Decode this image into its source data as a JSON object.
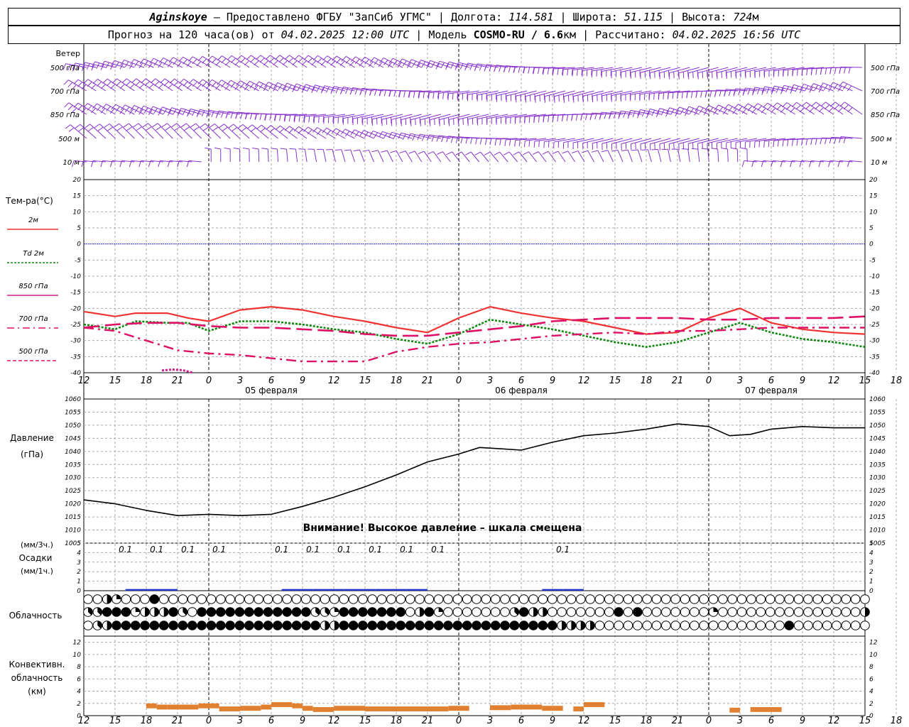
{
  "header": {
    "station": "Aginskoye",
    "provider_text": " — Предоставлено ФГБУ \"ЗапСиб УГМС\" | Долгота: ",
    "lon": "114.581",
    "lat_label": " | Широта: ",
    "lat": "51.115",
    "alt_label": " | Высота: ",
    "alt": "724",
    "alt_unit": "м",
    "fc_label": "Прогноз на 120 часа(ов) от ",
    "fc_time": "04.02.2025 12:00 UTC",
    "model_label": " | Модель ",
    "model": "COSMO-RU / 6.6",
    "model_unit": "км",
    "calc_label": " | Рассчитано: ",
    "calc_time": "04.02.2025 16:56 UTC"
  },
  "colors": {
    "wind": "#8833cc",
    "t2m": "#ee3333",
    "td2m": "#118811",
    "t850": "#cc2288",
    "t700": "#dd1166",
    "t500": "#dd1166",
    "pressure": "#000000",
    "precip": "#2233cc",
    "convective": "#e08030",
    "zero_line": "#3333cc",
    "grid": "#aaaaaa"
  },
  "labels": {
    "wind": "Ветер",
    "wind_levels": [
      "500 гПа",
      "700 гПа",
      "850 гПа",
      "500 м",
      "10 м"
    ],
    "temp": "Тем-ра(°С)",
    "temp_legend": [
      {
        "label": "2м",
        "key": "t2m",
        "dash": ""
      },
      {
        "label": "Td  2м",
        "key": "td2m",
        "dash": "3,2"
      },
      {
        "label": "850 гПа",
        "key": "t850",
        "dash": ""
      },
      {
        "label": "700 гПа",
        "key": "t700",
        "dash": "10,5,2,5"
      },
      {
        "label": "500 гПа",
        "key": "t500",
        "dash": "5,3"
      }
    ],
    "pressure": "Давление",
    "pressure_unit": "(гПа)",
    "pressure_warning": "Внимание! Высокое давление – шкала смещена",
    "precip_unit1": "(мм/3ч.)",
    "precip": "Осадки",
    "precip_unit2": "(мм/1ч.)",
    "cloud": "Облачность",
    "conv1": "Конвективн.",
    "conv2": "облачность",
    "conv3": "(км)"
  },
  "chart_data": {
    "type": "line",
    "hour_ticks": [
      "12",
      "15",
      "18",
      "21",
      "0",
      "3",
      "6",
      "9",
      "12",
      "15",
      "18",
      "21",
      "0",
      "3",
      "6",
      "9",
      "12",
      "15",
      "18",
      "21",
      "0",
      "3",
      "6",
      "9",
      "12",
      "15",
      "18"
    ],
    "dates": [
      {
        "label": "05 февраля",
        "hour": 18
      },
      {
        "label": "06 февраля",
        "hour": 42
      },
      {
        "label": "07 февраля",
        "hour": 66
      }
    ],
    "temp_axis": {
      "range": [
        -40,
        20
      ],
      "ticks": [
        20,
        15,
        10,
        5,
        0,
        -5,
        -10,
        -15,
        -20,
        -25,
        -30,
        -35,
        -40
      ]
    },
    "temperature_series": [
      {
        "key": "t2m",
        "points": [
          [
            0,
            -21
          ],
          [
            3,
            -22.5
          ],
          [
            5,
            -21.5
          ],
          [
            8,
            -21.5
          ],
          [
            10,
            -23
          ],
          [
            12,
            -24
          ],
          [
            15,
            -20.5
          ],
          [
            18,
            -19.5
          ],
          [
            21,
            -20.5
          ],
          [
            24,
            -22.5
          ],
          [
            27,
            -24
          ],
          [
            30,
            -26
          ],
          [
            33,
            -27.5
          ],
          [
            36,
            -23
          ],
          [
            39,
            -19.5
          ],
          [
            42,
            -21.5
          ],
          [
            45,
            -23
          ],
          [
            48,
            -24
          ],
          [
            51,
            -26
          ],
          [
            54,
            -28
          ],
          [
            57,
            -27.5
          ],
          [
            60,
            -23
          ],
          [
            63,
            -20
          ],
          [
            66,
            -24.5
          ],
          [
            69,
            -26.5
          ],
          [
            72,
            -27.5
          ],
          [
            75,
            -28
          ]
        ]
      },
      {
        "key": "td2m",
        "points": [
          [
            0,
            -25
          ],
          [
            3,
            -26.5
          ],
          [
            5,
            -24
          ],
          [
            8,
            -24.5
          ],
          [
            10,
            -24.5
          ],
          [
            12,
            -27
          ],
          [
            15,
            -24
          ],
          [
            18,
            -24
          ],
          [
            21,
            -25
          ],
          [
            24,
            -26.5
          ],
          [
            27,
            -27.5
          ],
          [
            30,
            -29.5
          ],
          [
            33,
            -31
          ],
          [
            36,
            -28
          ],
          [
            39,
            -23.5
          ],
          [
            42,
            -25
          ],
          [
            45,
            -26.5
          ],
          [
            48,
            -28.5
          ],
          [
            51,
            -30.5
          ],
          [
            54,
            -32
          ],
          [
            57,
            -30.5
          ],
          [
            60,
            -27.5
          ],
          [
            63,
            -24.5
          ],
          [
            66,
            -27.5
          ],
          [
            69,
            -29.5
          ],
          [
            72,
            -30.5
          ],
          [
            75,
            -32
          ]
        ]
      },
      {
        "key": "t700",
        "points": [
          [
            0,
            -26
          ],
          [
            3,
            -27
          ],
          [
            6,
            -30
          ],
          [
            9,
            -33
          ],
          [
            12,
            -34
          ],
          [
            15,
            -34.5
          ],
          [
            18,
            -35.5
          ],
          [
            21,
            -36.5
          ],
          [
            24,
            -36.5
          ],
          [
            27,
            -36.5
          ],
          [
            30,
            -33.5
          ],
          [
            33,
            -32
          ],
          [
            36,
            -31
          ],
          [
            39,
            -30.5
          ],
          [
            42,
            -29.5
          ],
          [
            45,
            -28.5
          ],
          [
            48,
            -28
          ],
          [
            51,
            -27.5
          ],
          [
            54,
            -28
          ],
          [
            57,
            -27
          ],
          [
            60,
            -27
          ],
          [
            63,
            -26.5
          ],
          [
            66,
            -26
          ],
          [
            69,
            -26
          ],
          [
            72,
            -26
          ],
          [
            75,
            -26
          ]
        ]
      },
      {
        "key": "t500",
        "points": [
          [
            0,
            -26
          ],
          [
            3,
            -25
          ],
          [
            6,
            -24.5
          ],
          [
            9,
            -24.5
          ],
          [
            12,
            -25.5
          ],
          [
            15,
            -26
          ],
          [
            18,
            -26
          ],
          [
            21,
            -26.5
          ],
          [
            24,
            -27
          ],
          [
            27,
            -28
          ],
          [
            30,
            -28.5
          ],
          [
            33,
            -28.5
          ],
          [
            36,
            -27.5
          ],
          [
            39,
            -26.5
          ],
          [
            42,
            -25.5
          ],
          [
            45,
            -24
          ],
          [
            48,
            -23.5
          ],
          [
            51,
            -23
          ],
          [
            54,
            -23
          ],
          [
            57,
            -23
          ],
          [
            60,
            -23.5
          ],
          [
            63,
            -23.5
          ],
          [
            66,
            -23
          ],
          [
            69,
            -23
          ],
          [
            72,
            -23
          ],
          [
            75,
            -22.5
          ]
        ]
      },
      {
        "key": "t850",
        "points": [
          [
            7.5,
            -39.3
          ],
          [
            8.5,
            -39
          ],
          [
            9.5,
            -39.2
          ],
          [
            10.5,
            -40
          ]
        ]
      }
    ],
    "pressure_axis": {
      "range": [
        1005,
        1060
      ],
      "ticks": [
        1060,
        1055,
        1050,
        1045,
        1040,
        1035,
        1030,
        1025,
        1020,
        1015,
        1010,
        1005
      ]
    },
    "pressure_points": [
      [
        0,
        1021.5
      ],
      [
        3,
        1020
      ],
      [
        6,
        1017.5
      ],
      [
        9,
        1015.5
      ],
      [
        12,
        1016
      ],
      [
        15,
        1015.5
      ],
      [
        18,
        1016
      ],
      [
        21,
        1019
      ],
      [
        24,
        1022.5
      ],
      [
        27,
        1026.5
      ],
      [
        30,
        1031
      ],
      [
        33,
        1036
      ],
      [
        36,
        1039
      ],
      [
        38,
        1041.5
      ],
      [
        40,
        1041
      ],
      [
        42,
        1040.5
      ],
      [
        45,
        1043.5
      ],
      [
        48,
        1046
      ],
      [
        51,
        1047
      ],
      [
        54,
        1048.5
      ],
      [
        57,
        1050.5
      ],
      [
        60,
        1049.5
      ],
      [
        62,
        1046
      ],
      [
        64,
        1046.5
      ],
      [
        66,
        1048.5
      ],
      [
        69,
        1049.5
      ],
      [
        72,
        1049
      ],
      [
        75,
        1049
      ]
    ],
    "precip_axis": {
      "range": [
        0,
        5
      ],
      "ticks": [
        5,
        4,
        3,
        2,
        1,
        0
      ]
    },
    "precip_labels": [
      {
        "hour": 4,
        "text": "0.1"
      },
      {
        "hour": 7,
        "text": "0.1"
      },
      {
        "hour": 10,
        "text": "0.1"
      },
      {
        "hour": 13,
        "text": "0.1"
      },
      {
        "hour": 19,
        "text": "0.1"
      },
      {
        "hour": 22,
        "text": "0.1"
      },
      {
        "hour": 25,
        "text": "0.1"
      },
      {
        "hour": 28,
        "text": "0.1"
      },
      {
        "hour": 31,
        "text": "0.1"
      },
      {
        "hour": 34,
        "text": "0.1"
      },
      {
        "hour": 46,
        "text": "0.1"
      }
    ],
    "precip_bars": [
      [
        4,
        9,
        0.1
      ],
      [
        19,
        22,
        0.1
      ],
      [
        22,
        25,
        0.1
      ],
      [
        25,
        28,
        0.1
      ],
      [
        28,
        31,
        0.1
      ],
      [
        31,
        33,
        0.1
      ],
      [
        44,
        46,
        0.1
      ],
      [
        46,
        48,
        0.1
      ]
    ],
    "cloud_rows": [
      "00420008000000000000000000000000000000000000000000000000000000000000000000000000000",
      "33888244483088888888888833288888880482000000038440000000808000000020000000000000004",
      "03488888888888888888888884488888888888888888888888444400000000000000000000800000000"
    ],
    "conv_axis": {
      "range": [
        0,
        13
      ],
      "ticks": [
        12,
        10,
        8,
        6,
        4,
        2,
        0
      ]
    },
    "conv_bars": [
      [
        6,
        7,
        2
      ],
      [
        7,
        8,
        1.8
      ],
      [
        8,
        11,
        1.8
      ],
      [
        11,
        13,
        2
      ],
      [
        13,
        15,
        1.5
      ],
      [
        15,
        17,
        1.6
      ],
      [
        17,
        18,
        1.8
      ],
      [
        18,
        20,
        2.2
      ],
      [
        20,
        21,
        2
      ],
      [
        21,
        22,
        1.6
      ],
      [
        22,
        24,
        1.4
      ],
      [
        24,
        27,
        1.6
      ],
      [
        27,
        30,
        1.5
      ],
      [
        30,
        35,
        1.5
      ],
      [
        35,
        37,
        1.6
      ],
      [
        39,
        41,
        1.7
      ],
      [
        41,
        44,
        1.8
      ],
      [
        44,
        46,
        1.6
      ],
      [
        47,
        48,
        1.5
      ],
      [
        48,
        50,
        2.2
      ],
      [
        62,
        63,
        1.3
      ],
      [
        64,
        67,
        1.4
      ]
    ]
  }
}
